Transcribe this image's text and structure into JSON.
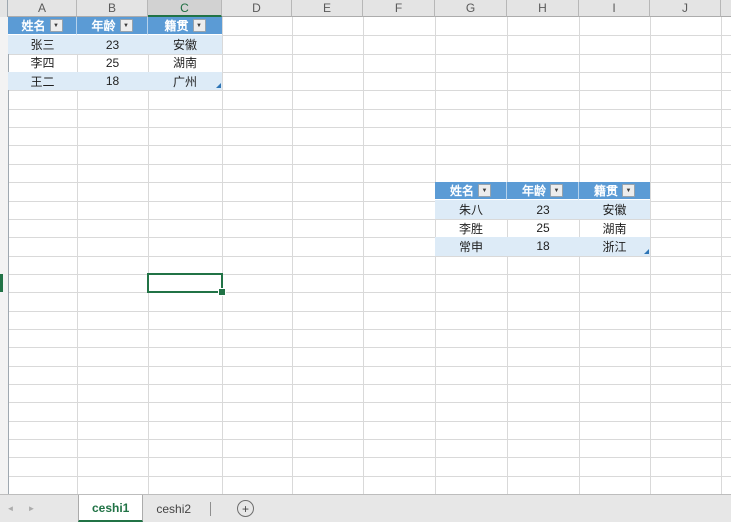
{
  "grid": {
    "column_headers": [
      "A",
      "B",
      "C",
      "D",
      "E",
      "F",
      "G",
      "H",
      "I",
      "J"
    ],
    "selected_column": "C",
    "selected_cell": "C15"
  },
  "tables": [
    {
      "origin": "A1",
      "headers": [
        "姓名",
        "年龄",
        "籍贯"
      ],
      "rows": [
        [
          "张三",
          "23",
          "安徽"
        ],
        [
          "李四",
          "25",
          "湖南"
        ],
        [
          "王二",
          "18",
          "广州"
        ]
      ]
    },
    {
      "origin": "G10",
      "headers": [
        "姓名",
        "年龄",
        "籍贯"
      ],
      "rows": [
        [
          "朱八",
          "23",
          "安徽"
        ],
        [
          "李胜",
          "25",
          "湖南"
        ],
        [
          "常申",
          "18",
          "浙江"
        ]
      ]
    }
  ],
  "sheet_bar": {
    "tabs": [
      {
        "label": "ceshi1",
        "active": true
      },
      {
        "label": "ceshi2",
        "active": false
      }
    ]
  },
  "icons": {
    "filter_glyph": "▼",
    "plus_glyph": "+",
    "scroll_left_glyph": "◄",
    "scroll_right_glyph": "►"
  },
  "colors": {
    "accent_green": "#217346",
    "table_header_blue": "#5B9BD5",
    "band_blue": "#DDEBF7",
    "table_handle_blue": "#2E75B6"
  }
}
